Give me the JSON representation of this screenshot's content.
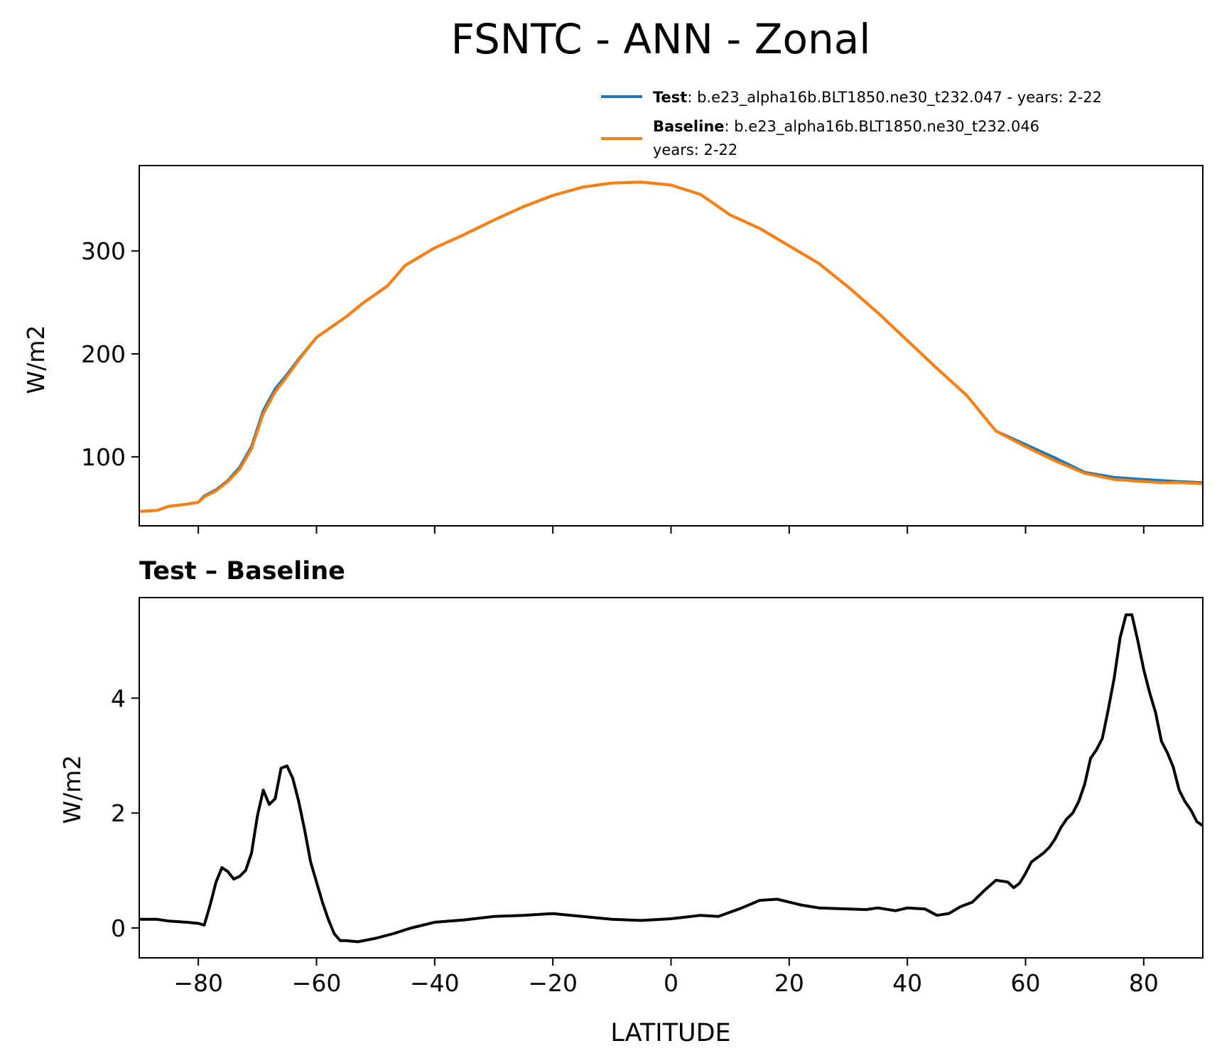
{
  "chart_data": [
    {
      "type": "line",
      "title": "FSNTC - ANN - Zonal",
      "xlabel": "",
      "ylabel": "W/m2",
      "xlim": [
        -90,
        90
      ],
      "ylim": [
        33,
        383
      ],
      "yticks": [
        100,
        200,
        300
      ],
      "legend": {
        "placement": "top-right, above axes",
        "entries": [
          {
            "bold": "Test",
            "text": ": b.e23_alpha16b.BLT1850.ne30_t232.047 - years: 2-22",
            "color": "#1f77b4"
          },
          {
            "bold": "Baseline",
            "text": ": b.e23_alpha16b.BLT1850.ne30_t232.046",
            "text2": "years: 2-22",
            "color": "#ff7f0e"
          }
        ]
      },
      "series": [
        {
          "name": "Test",
          "color": "#1f77b4",
          "x": [
            -90,
            -87,
            -85,
            -82,
            -80,
            -79,
            -77,
            -75,
            -73,
            -71,
            -69,
            -67,
            -65,
            -63,
            -60,
            -57,
            -55,
            -52,
            -48,
            -45,
            -40,
            -35,
            -30,
            -25,
            -20,
            -15,
            -10,
            -5,
            0,
            5,
            10,
            15,
            20,
            25,
            30,
            35,
            40,
            45,
            50,
            55,
            60,
            65,
            70,
            75,
            80,
            83,
            86,
            90
          ],
          "y": [
            47,
            48,
            52,
            54,
            56,
            62,
            68,
            77,
            90,
            110,
            145,
            166,
            180,
            195,
            216,
            228,
            236,
            250,
            266,
            286,
            303,
            316,
            330,
            343,
            354,
            362,
            366,
            367,
            364,
            355,
            335,
            322,
            305,
            288,
            265,
            240,
            213,
            186,
            160,
            125,
            112,
            99,
            85,
            80,
            78,
            77,
            76,
            75
          ]
        },
        {
          "name": "Baseline",
          "color": "#ff7f0e",
          "x": [
            -90,
            -87,
            -85,
            -82,
            -80,
            -79,
            -77,
            -75,
            -73,
            -71,
            -69,
            -67,
            -65,
            -63,
            -60,
            -57,
            -55,
            -52,
            -48,
            -45,
            -40,
            -35,
            -30,
            -25,
            -20,
            -15,
            -10,
            -5,
            0,
            5,
            10,
            15,
            20,
            25,
            30,
            35,
            40,
            45,
            50,
            55,
            60,
            65,
            70,
            75,
            80,
            83,
            86,
            90
          ],
          "y": [
            47,
            48,
            52,
            54,
            56,
            61,
            67,
            76,
            88,
            108,
            142,
            163,
            178,
            194,
            216,
            228,
            236,
            250,
            266,
            286,
            303,
            316,
            330,
            343,
            354,
            362,
            366,
            367,
            364,
            355,
            335,
            322,
            305,
            288,
            265,
            240,
            213,
            186,
            160,
            125,
            110,
            96,
            84,
            78,
            76,
            75,
            75,
            74
          ]
        }
      ]
    },
    {
      "type": "line",
      "title": "Test – Baseline",
      "xlabel": "LATITUDE",
      "ylabel": "W/m2",
      "xlim": [
        -90,
        90
      ],
      "ylim": [
        -0.52,
        5.75
      ],
      "yticks": [
        0,
        2,
        4
      ],
      "xticks": [
        -80,
        -60,
        -40,
        -20,
        0,
        20,
        40,
        60,
        80
      ],
      "xtick_labels": [
        "−80",
        "−60",
        "−40",
        "−20",
        "0",
        "20",
        "40",
        "60",
        "80"
      ],
      "series": [
        {
          "name": "Test – Baseline",
          "color": "#000000",
          "x": [
            -90,
            -87,
            -85,
            -82,
            -80,
            -79,
            -78,
            -77,
            -76,
            -75,
            -74,
            -73,
            -72,
            -71,
            -70,
            -69,
            -68,
            -67,
            -66,
            -65,
            -64,
            -63,
            -62,
            -61,
            -60,
            -59,
            -58,
            -57,
            -56,
            -55,
            -54,
            -53,
            -50,
            -47,
            -44,
            -40,
            -35,
            -30,
            -25,
            -20,
            -15,
            -10,
            -5,
            0,
            5,
            8,
            12,
            15,
            18,
            20,
            22,
            25,
            30,
            33,
            35,
            38,
            40,
            43,
            45,
            47,
            49,
            51,
            53,
            55,
            57,
            58,
            59,
            60,
            61,
            63,
            64,
            65,
            66,
            67,
            68,
            69,
            70,
            71,
            72,
            73,
            74,
            75,
            76,
            77,
            78,
            79,
            80,
            81,
            82,
            83,
            84,
            85,
            86,
            87,
            88,
            89,
            90
          ],
          "y": [
            0.15,
            0.15,
            0.12,
            0.1,
            0.08,
            0.05,
            0.4,
            0.8,
            1.05,
            0.98,
            0.85,
            0.9,
            1.0,
            1.3,
            1.95,
            2.4,
            2.15,
            2.25,
            2.78,
            2.82,
            2.6,
            2.2,
            1.7,
            1.15,
            0.8,
            0.45,
            0.15,
            -0.1,
            -0.22,
            -0.22,
            -0.23,
            -0.24,
            -0.18,
            -0.1,
            0.0,
            0.1,
            0.14,
            0.2,
            0.22,
            0.25,
            0.2,
            0.15,
            0.13,
            0.16,
            0.22,
            0.2,
            0.35,
            0.48,
            0.5,
            0.45,
            0.4,
            0.35,
            0.33,
            0.32,
            0.35,
            0.3,
            0.35,
            0.33,
            0.22,
            0.25,
            0.37,
            0.45,
            0.65,
            0.83,
            0.8,
            0.7,
            0.78,
            0.95,
            1.15,
            1.3,
            1.4,
            1.55,
            1.75,
            1.9,
            2.0,
            2.2,
            2.5,
            2.95,
            3.1,
            3.3,
            3.8,
            4.35,
            5.05,
            5.45,
            5.45,
            5.0,
            4.5,
            4.1,
            3.75,
            3.25,
            3.05,
            2.8,
            2.4,
            2.2,
            2.05,
            1.85,
            1.78
          ]
        }
      ]
    }
  ]
}
